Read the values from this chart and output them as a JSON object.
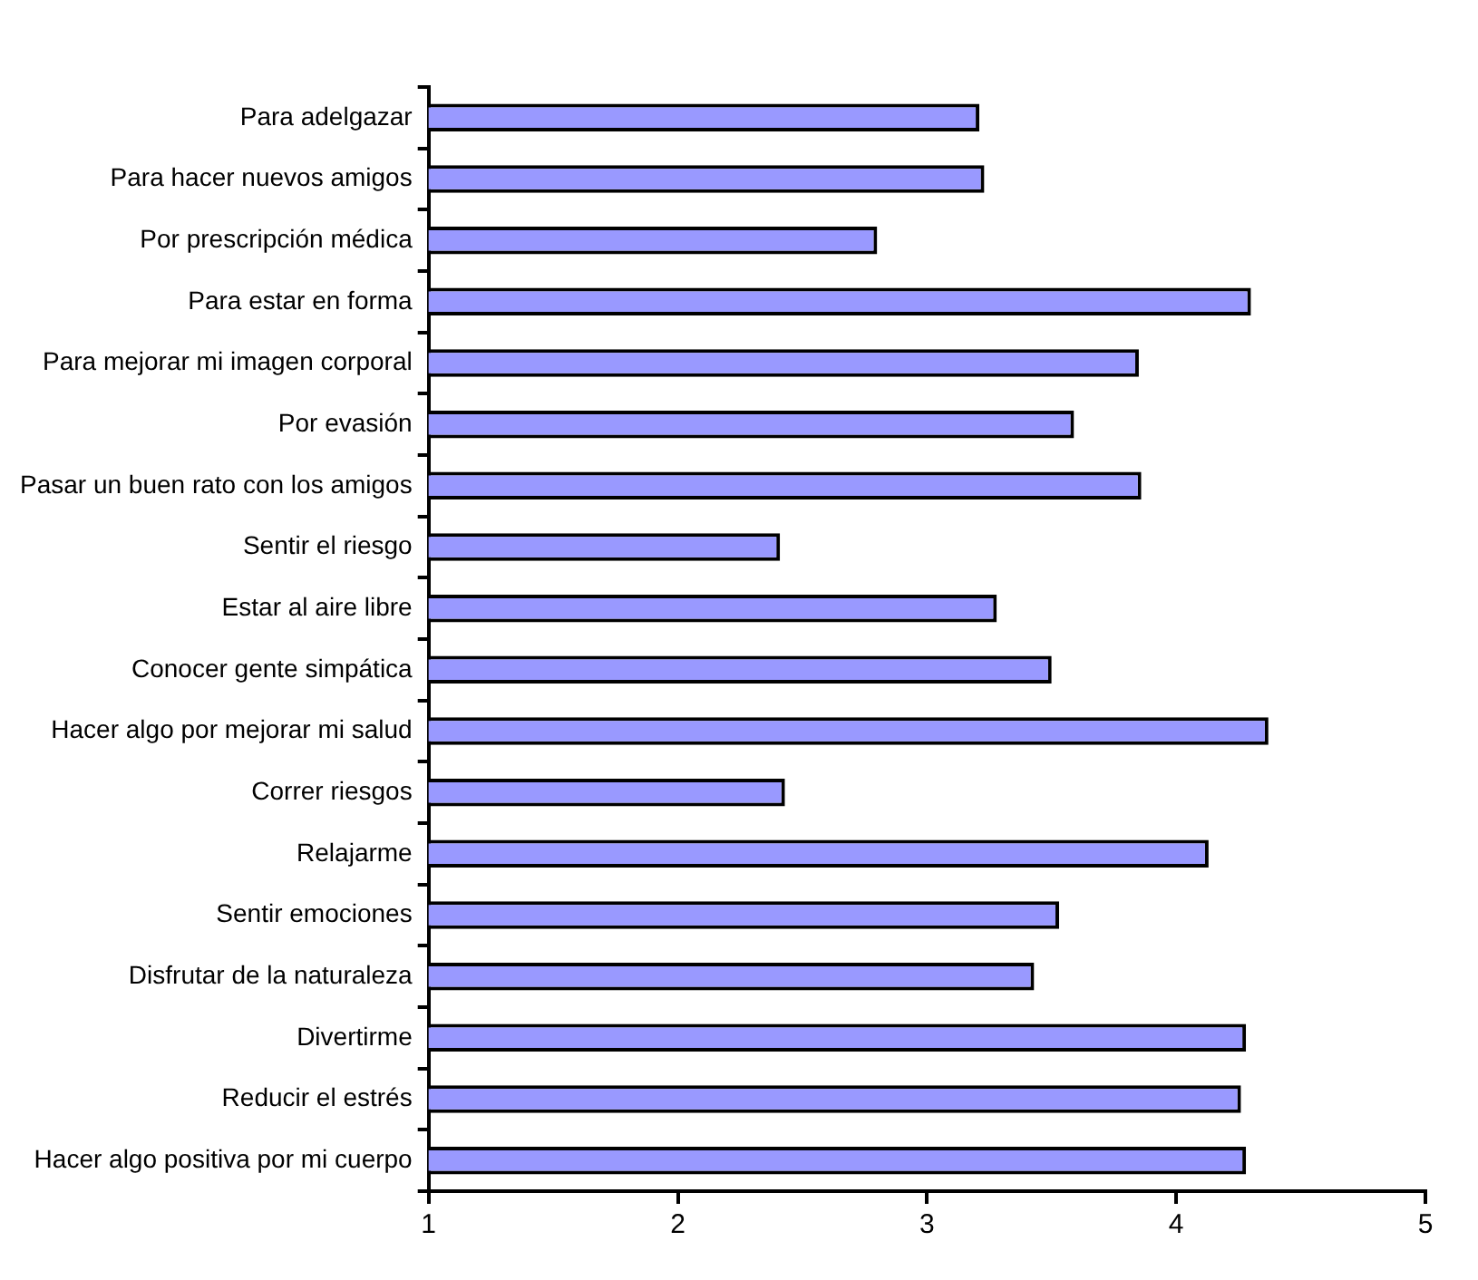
{
  "chart_data": {
    "type": "bar",
    "orientation": "horizontal",
    "categories": [
      "Para adelgazar",
      "Para hacer nuevos amigos",
      "Por prescripción médica",
      "Para estar en forma",
      "Para mejorar mi imagen corporal",
      "Por evasión",
      "Pasar un buen rato con los amigos",
      "Sentir el riesgo",
      "Estar al aire libre",
      "Conocer gente simpática",
      "Hacer algo por mejorar mi salud",
      "Correr riesgos",
      "Relajarme",
      "Sentir emociones",
      "Disfrutar de la naturaleza",
      "Divertirme",
      "Reducir el estrés",
      "Hacer algo positiva por mi cuerpo"
    ],
    "values": [
      3.21,
      3.23,
      2.8,
      4.3,
      3.85,
      3.59,
      3.86,
      2.41,
      3.28,
      3.5,
      4.37,
      2.43,
      4.13,
      3.53,
      3.43,
      4.28,
      4.26,
      4.28
    ],
    "color": "#9999ff",
    "xlim": [
      1,
      5
    ],
    "xticks": [
      1,
      2,
      3,
      4,
      5
    ],
    "grid": false,
    "legend": false
  }
}
